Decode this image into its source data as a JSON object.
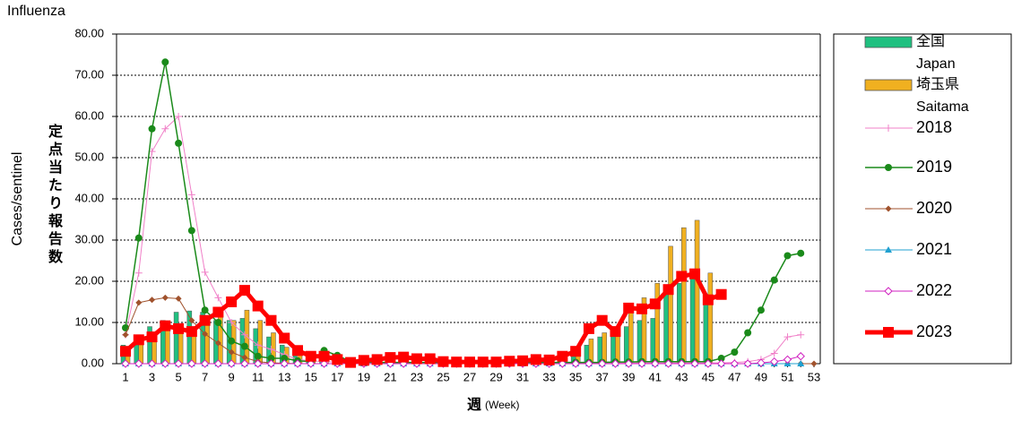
{
  "chart_data": {
    "type": "bar-line",
    "title": "Influenza",
    "y_label": "Cases/sentinel",
    "y_label_ja": "定点当たり報告数",
    "x_label": "週",
    "x_label_en": "(Week)",
    "categories": [
      1,
      null,
      3,
      null,
      5,
      null,
      7,
      null,
      9,
      null,
      11,
      null,
      13,
      null,
      15,
      null,
      17,
      null,
      19,
      null,
      21,
      null,
      23,
      null,
      25,
      null,
      27,
      null,
      29,
      null,
      31,
      null,
      33,
      null,
      35,
      null,
      37,
      null,
      39,
      null,
      41,
      null,
      43,
      null,
      45,
      null,
      47,
      null,
      49,
      null,
      51,
      null,
      53
    ],
    "ylim": [
      0,
      80
    ],
    "yticks": [
      {
        "value": 0,
        "label": "0.00"
      },
      {
        "value": 10,
        "label": "10.00"
      },
      {
        "value": 20,
        "label": "20.00"
      },
      {
        "value": 30,
        "label": "30.00"
      },
      {
        "value": 40,
        "label": "40.00"
      },
      {
        "value": 50,
        "label": "50.00"
      },
      {
        "value": 60,
        "label": "60.00"
      },
      {
        "value": 70,
        "label": "70.00"
      },
      {
        "value": 80,
        "label": "80.00"
      }
    ],
    "grid": true,
    "legend": "right",
    "series": [
      {
        "name": "全国",
        "name_en": "Japan",
        "kind": "bar",
        "color": "#20c080",
        "values": [
          4.5,
          6.5,
          9.0,
          10.5,
          12.5,
          12.8,
          12.5,
          10.5,
          10.5,
          11.0,
          8.5,
          6.5,
          4.5,
          2.5,
          1.5,
          1.0,
          0.8,
          0.5,
          0.5,
          0.7,
          0.9,
          1.0,
          0.9,
          0.9,
          0.6,
          0.4,
          0.4,
          0.5,
          0.5,
          0.6,
          0.8,
          0.9,
          1.0,
          1.5,
          2.5,
          4.5,
          6.5,
          7.5,
          9.0,
          10.5,
          11.0,
          17.5,
          19.5,
          21.5,
          14.5,
          null,
          null,
          null,
          null,
          null,
          null,
          null,
          null
        ]
      },
      {
        "name": "埼玉県",
        "name_en": "Saitama",
        "kind": "bar",
        "color": "#f0b020",
        "values": [
          3.5,
          5.5,
          6.5,
          8.0,
          7.5,
          7.0,
          9.5,
          12.0,
          10.5,
          13.0,
          10.5,
          7.5,
          4.0,
          2.0,
          1.5,
          1.5,
          1.0,
          0.5,
          0.5,
          0.8,
          1.2,
          1.2,
          1.0,
          1.0,
          0.5,
          0.3,
          0.3,
          0.3,
          0.3,
          0.5,
          0.6,
          0.8,
          0.8,
          1.5,
          2.0,
          6.0,
          7.5,
          8.0,
          14.0,
          16.0,
          19.5,
          28.5,
          33.0,
          34.8,
          22.0,
          null,
          null,
          null,
          null,
          null,
          null,
          null,
          null
        ]
      },
      {
        "name": "2018",
        "kind": "line",
        "marker": "plus",
        "color": "#f080c8",
        "width": 1,
        "values": [
          7.0,
          22.0,
          51.5,
          57.0,
          60.0,
          41.0,
          22.2,
          16.0,
          10.0,
          7.0,
          4.5,
          3.5,
          2.2,
          1.0,
          0.7,
          0.5,
          0.4,
          0.2,
          0.2,
          0.2,
          0.2,
          0.2,
          0.2,
          0.2,
          0.2,
          0.2,
          0.2,
          0.2,
          0.2,
          0.2,
          0.2,
          0.2,
          0.2,
          0.2,
          0.2,
          0.2,
          0.2,
          0.2,
          0.2,
          0.2,
          0.2,
          0.2,
          0.2,
          0.2,
          0.2,
          0.2,
          0.3,
          0.5,
          1.0,
          2.5,
          6.5,
          7.0,
          null
        ]
      },
      {
        "name": "2019",
        "kind": "line",
        "marker": "circle",
        "color": "#1a8a1a",
        "width": 1.5,
        "values": [
          8.7,
          30.5,
          57.0,
          73.2,
          53.5,
          32.3,
          13.0,
          10.0,
          5.5,
          4.2,
          1.8,
          1.3,
          1.3,
          0.7,
          0.5,
          3.2,
          2.0,
          0.5,
          0.4,
          0.3,
          0.3,
          0.3,
          0.3,
          0.3,
          0.3,
          0.3,
          0.3,
          0.3,
          0.3,
          0.3,
          0.3,
          0.3,
          0.3,
          0.3,
          0.3,
          0.3,
          0.3,
          0.4,
          0.4,
          0.5,
          0.5,
          0.5,
          0.5,
          0.5,
          0.5,
          1.3,
          2.8,
          7.5,
          13.0,
          20.3,
          26.2,
          26.8,
          null
        ]
      },
      {
        "name": "2020",
        "kind": "line",
        "marker": "diamond",
        "color": "#a0522d",
        "width": 1,
        "values": [
          7.0,
          14.8,
          15.5,
          16.0,
          15.8,
          10.5,
          7.2,
          5.0,
          2.8,
          1.5,
          0.5,
          0.2,
          0.1,
          0,
          0,
          0,
          0,
          0,
          0,
          0,
          0,
          0,
          0,
          0,
          0,
          0,
          0,
          0,
          0,
          0,
          0,
          0,
          0,
          0,
          0,
          0,
          0,
          0,
          0,
          0,
          0,
          0,
          0,
          0,
          0,
          0,
          0,
          0,
          0,
          0,
          0,
          0,
          0
        ]
      },
      {
        "name": "2021",
        "kind": "line",
        "marker": "triangle",
        "color": "#20a0d0",
        "width": 1,
        "values": [
          0,
          0,
          0,
          0,
          0,
          0,
          0,
          0,
          0,
          0,
          0,
          0,
          0,
          0,
          0,
          0,
          0,
          0,
          0,
          0,
          0,
          0,
          0,
          0,
          0,
          0,
          0,
          0,
          0,
          0,
          0,
          0,
          0,
          0,
          0,
          0,
          0,
          0,
          0,
          0,
          0,
          0,
          0,
          0,
          0,
          0,
          0,
          0,
          0,
          0,
          0,
          0,
          null
        ]
      },
      {
        "name": "2022",
        "kind": "line",
        "marker": "diamond-open",
        "color": "#d020c0",
        "width": 1,
        "values": [
          0,
          0,
          0,
          0,
          0,
          0,
          0,
          0,
          0,
          0,
          0,
          0,
          0,
          0,
          0,
          0,
          0,
          0,
          0,
          0,
          0,
          0,
          0,
          0,
          0,
          0,
          0,
          0,
          0,
          0,
          0,
          0,
          0,
          0,
          0,
          0,
          0,
          0,
          0,
          0,
          0,
          0,
          0,
          0,
          0,
          0,
          0,
          0,
          0.2,
          0.5,
          1.0,
          1.8,
          null
        ]
      },
      {
        "name": "2023",
        "kind": "line",
        "marker": "square",
        "color": "#ff0000",
        "width": 5,
        "values": [
          3.0,
          5.8,
          6.5,
          9.2,
          8.5,
          7.8,
          10.5,
          12.5,
          15.0,
          17.8,
          14.0,
          10.5,
          6.2,
          3.2,
          1.8,
          1.8,
          1.0,
          0.3,
          0.8,
          1.0,
          1.5,
          1.6,
          1.2,
          1.2,
          0.5,
          0.4,
          0.4,
          0.4,
          0.4,
          0.6,
          0.7,
          1.0,
          0.9,
          1.8,
          3.0,
          8.5,
          10.5,
          7.8,
          13.5,
          13.3,
          14.5,
          18.0,
          21.2,
          21.8,
          15.5,
          16.8,
          null,
          null,
          null,
          null,
          null,
          null,
          null
        ]
      }
    ]
  }
}
